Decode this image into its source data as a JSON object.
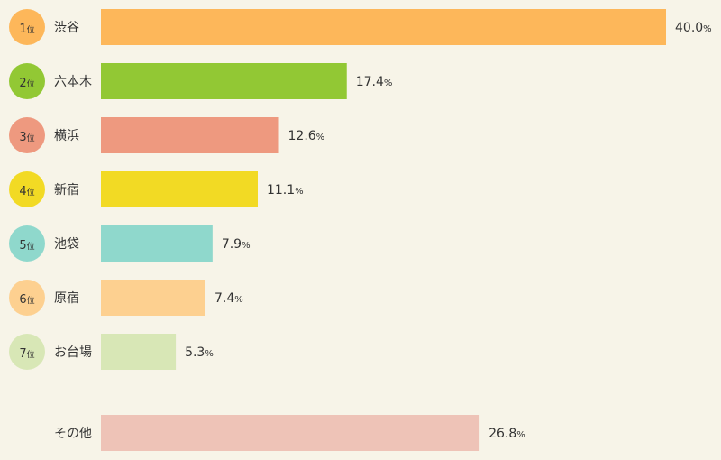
{
  "chart_data": {
    "type": "bar",
    "orientation": "horizontal",
    "rank_suffix": "位",
    "percent_suffix": "%",
    "ranked": [
      {
        "rank": "1",
        "label": "渋谷",
        "value": 40.0,
        "value_label": "40.0",
        "color": "#fdb75a",
        "badge_color": "#fdb75a"
      },
      {
        "rank": "2",
        "label": "六本木",
        "value": 17.4,
        "value_label": "17.4",
        "color": "#92c834",
        "badge_color": "#92c834"
      },
      {
        "rank": "3",
        "label": "横浜",
        "value": 12.6,
        "value_label": "12.6",
        "color": "#ee997f",
        "badge_color": "#ee997f"
      },
      {
        "rank": "4",
        "label": "新宿",
        "value": 11.1,
        "value_label": "11.1",
        "color": "#f2da24",
        "badge_color": "#f2da24"
      },
      {
        "rank": "5",
        "label": "池袋",
        "value": 7.9,
        "value_label": "7.9",
        "color": "#8fd8cc",
        "badge_color": "#8fd8cc"
      },
      {
        "rank": "6",
        "label": "原宿",
        "value": 7.4,
        "value_label": "7.4",
        "color": "#fdd090",
        "badge_color": "#fdd090"
      },
      {
        "rank": "7",
        "label": "お台場",
        "value": 5.3,
        "value_label": "5.3",
        "color": "#d8e7b6",
        "badge_color": "#d8e7b6"
      }
    ],
    "other": {
      "label": "その他",
      "value": 26.8,
      "value_label": "26.8",
      "color": "#eec3b7"
    }
  }
}
